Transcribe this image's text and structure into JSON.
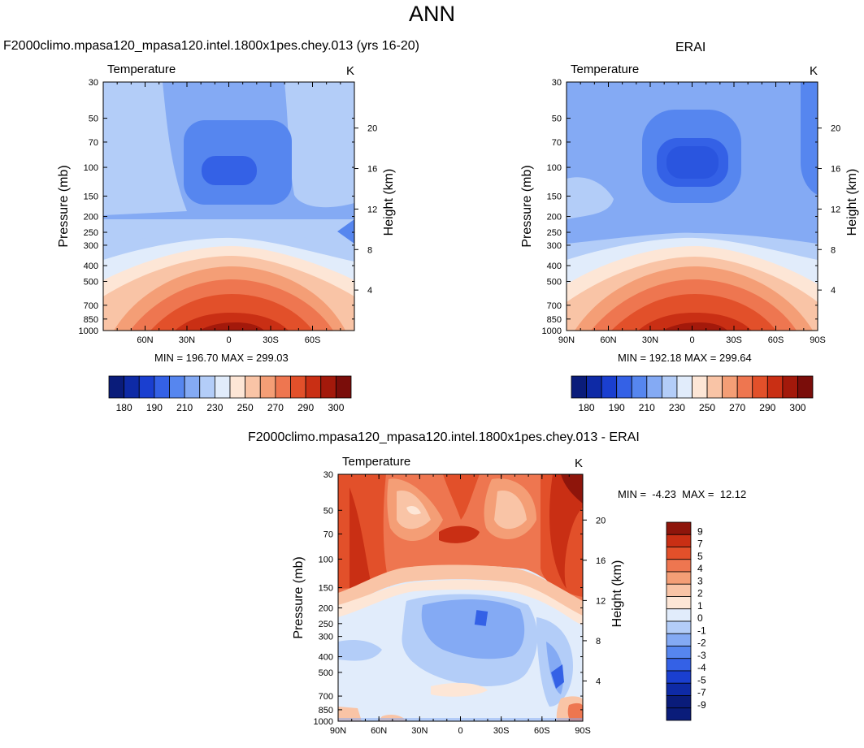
{
  "title": "ANN",
  "colors": {
    "temp_levels": [
      "#0a1c7a",
      "#0e2aa6",
      "#1a3fd0",
      "#3461e6",
      "#5686ef",
      "#84aaf4",
      "#b3cdf8",
      "#e1ecfb",
      "#fde6d6",
      "#f9c4a6",
      "#f49e76",
      "#ee7650",
      "#e2502a",
      "#c92f14",
      "#a3190b",
      "#7a0d0a"
    ],
    "diff_levels": [
      "#0a1c7a",
      "#0e2aa6",
      "#1a3fd0",
      "#3461e6",
      "#5686ef",
      "#84aaf4",
      "#b3cdf8",
      "#e1ecfb",
      "#fde6d6",
      "#f9c4a6",
      "#f49e76",
      "#ee7650",
      "#e2502a",
      "#c92f14",
      "#8e150b"
    ]
  },
  "chart_data": [
    {
      "type": "heatmap",
      "panel": "model",
      "title": "F2000climo.mpasa120_mpasa120.intel.1800x1pes.chey.013 (yrs 16-20)",
      "variable": "Temperature",
      "units": "K",
      "ylabel": "Pressure (mb)",
      "y2label": "Height (km)",
      "x_ticks": [
        "60N",
        "30N",
        "0",
        "30S",
        "60S"
      ],
      "y_ticks": [
        "30",
        "50",
        "70",
        "100",
        "150",
        "200",
        "250",
        "300",
        "400",
        "500",
        "700",
        "850",
        "1000"
      ],
      "y2_ticks": [
        "20",
        "16",
        "12",
        "8",
        "4"
      ],
      "stats": "MIN = 196.70  MAX = 299.03",
      "colorbar_labels": [
        "180",
        "190",
        "210",
        "230",
        "250",
        "270",
        "290",
        "300"
      ],
      "ylim": [
        1000,
        30
      ],
      "xlim": [
        "90N",
        "90S"
      ],
      "min": 196.7,
      "max": 299.03
    },
    {
      "type": "heatmap",
      "panel": "obs",
      "title": "ERAI",
      "variable": "Temperature",
      "units": "K",
      "ylabel": "Pressure (mb)",
      "y2label": "Height (km)",
      "x_ticks": [
        "90N",
        "60N",
        "30N",
        "0",
        "30S",
        "60S",
        "90S"
      ],
      "y_ticks": [
        "30",
        "50",
        "70",
        "100",
        "150",
        "200",
        "250",
        "300",
        "400",
        "500",
        "700",
        "850",
        "1000"
      ],
      "y2_ticks": [
        "20",
        "16",
        "12",
        "8",
        "4"
      ],
      "stats": "MIN = 192.18  MAX = 299.64",
      "colorbar_labels": [
        "180",
        "190",
        "210",
        "230",
        "250",
        "270",
        "290",
        "300"
      ],
      "ylim": [
        1000,
        30
      ],
      "xlim": [
        "90N",
        "90S"
      ],
      "min": 192.18,
      "max": 299.64
    },
    {
      "type": "heatmap",
      "panel": "diff",
      "title": "F2000climo.mpasa120_mpasa120.intel.1800x1pes.chey.013 - ERAI",
      "variable": "Temperature",
      "units": "K",
      "ylabel": "Pressure (mb)",
      "y2label": "Height (km)",
      "x_ticks": [
        "90N",
        "60N",
        "30N",
        "0",
        "30S",
        "60S",
        "90S"
      ],
      "y_ticks": [
        "30",
        "50",
        "70",
        "100",
        "150",
        "200",
        "250",
        "300",
        "400",
        "500",
        "700",
        "850",
        "1000"
      ],
      "y2_ticks": [
        "20",
        "16",
        "12",
        "8",
        "4"
      ],
      "stats": "MIN =  -4.23  MAX =  12.12",
      "colorbar_labels": [
        "9",
        "7",
        "5",
        "4",
        "3",
        "2",
        "1",
        "0",
        "-1",
        "-2",
        "-3",
        "-4",
        "-5",
        "-7",
        "-9"
      ],
      "ylim": [
        1000,
        30
      ],
      "xlim": [
        "90N",
        "90S"
      ],
      "min": -4.23,
      "max": 12.12
    }
  ]
}
